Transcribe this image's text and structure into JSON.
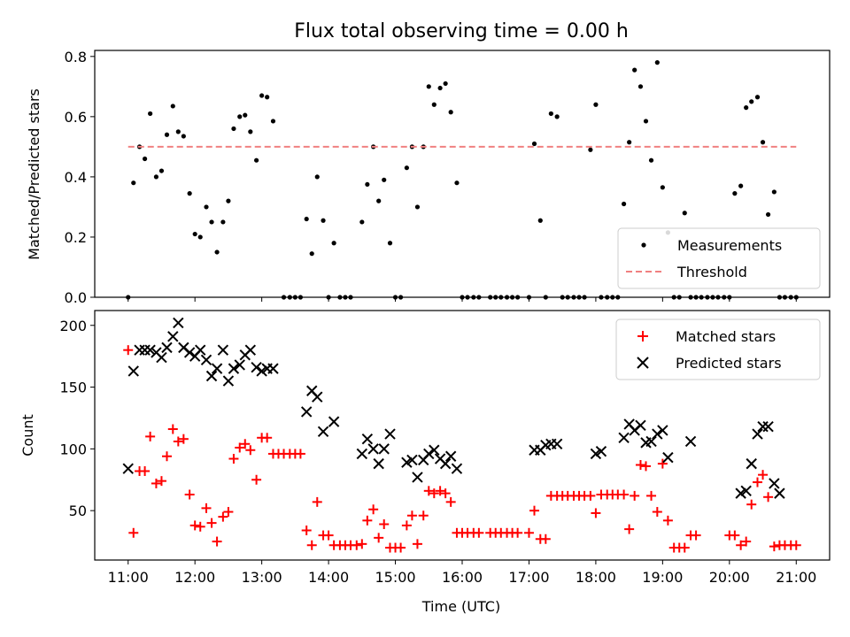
{
  "chart_data": [
    {
      "type": "scatter",
      "title": "Flux total observing time = 0.00 h",
      "ylabel": "Matched/Predicted stars",
      "xlabel": "",
      "x_unit": "hours UTC",
      "xlim": [
        10.5,
        21.5
      ],
      "ylim": [
        0,
        0.82
      ],
      "yticks": [
        "0.0",
        "0.2",
        "0.4",
        "0.6",
        "0.8"
      ],
      "legend_position": "lower-right",
      "series": [
        {
          "name": "Measurements",
          "kind": "points",
          "color": "#000000",
          "x": [
            11.0,
            11.08,
            11.17,
            11.25,
            11.33,
            11.42,
            11.5,
            11.58,
            11.67,
            11.75,
            11.83,
            11.92,
            12.0,
            12.08,
            12.17,
            12.25,
            12.33,
            12.42,
            12.5,
            12.58,
            12.67,
            12.75,
            12.83,
            12.92,
            13.0,
            13.08,
            13.17,
            13.33,
            13.42,
            13.5,
            13.58,
            13.67,
            13.75,
            13.83,
            13.92,
            14.0,
            14.08,
            14.17,
            14.25,
            14.33,
            14.5,
            14.58,
            14.67,
            14.75,
            14.83,
            14.92,
            15.0,
            15.08,
            15.17,
            15.25,
            15.33,
            15.42,
            15.5,
            15.58,
            15.67,
            15.75,
            15.83,
            15.92,
            16.0,
            16.08,
            16.17,
            16.25,
            16.42,
            16.5,
            16.58,
            16.67,
            16.75,
            16.83,
            17.0,
            17.08,
            17.17,
            17.25,
            17.33,
            17.42,
            17.5,
            17.58,
            17.67,
            17.75,
            17.83,
            17.92,
            18.0,
            18.08,
            18.17,
            18.25,
            18.33,
            18.42,
            18.5,
            18.58,
            18.67,
            18.75,
            18.83,
            18.92,
            19.0,
            19.08,
            19.17,
            19.25,
            19.33,
            19.42,
            19.5,
            19.58,
            19.67,
            19.75,
            19.83,
            19.92,
            20.0,
            20.08,
            20.17,
            20.25,
            20.33,
            20.42,
            20.5,
            20.58,
            20.67,
            20.75,
            20.83,
            20.92,
            21.0
          ],
          "y": [
            0.0,
            0.38,
            0.5,
            0.46,
            0.61,
            0.4,
            0.42,
            0.54,
            0.635,
            0.55,
            0.535,
            0.345,
            0.21,
            0.2,
            0.3,
            0.25,
            0.15,
            0.25,
            0.32,
            0.56,
            0.6,
            0.605,
            0.55,
            0.455,
            0.67,
            0.665,
            0.585,
            0.0,
            0.0,
            0.0,
            0.0,
            0.26,
            0.145,
            0.4,
            0.255,
            0.0,
            0.18,
            0.0,
            0.0,
            0.0,
            0.25,
            0.375,
            0.5,
            0.32,
            0.39,
            0.18,
            0.0,
            0.0,
            0.43,
            0.5,
            0.3,
            0.5,
            0.7,
            0.64,
            0.695,
            0.71,
            0.615,
            0.38,
            0.0,
            0.0,
            0.0,
            0.0,
            0.0,
            0.0,
            0.0,
            0.0,
            0.0,
            0.0,
            0.0,
            0.51,
            0.255,
            0.0,
            0.61,
            0.6,
            0.0,
            0.0,
            0.0,
            0.0,
            0.0,
            0.49,
            0.64,
            0.0,
            0.0,
            0.0,
            0.0,
            0.31,
            0.515,
            0.755,
            0.7,
            0.585,
            0.455,
            0.78,
            0.365,
            0.215,
            0.0,
            0.0,
            0.28,
            0.0,
            0.0,
            0.0,
            0.0,
            0.0,
            0.0,
            0.0,
            0.0,
            0.345,
            0.37,
            0.63,
            0.65,
            0.665,
            0.515,
            0.275,
            0.35,
            0.0,
            0.0,
            0.0,
            0.0
          ]
        },
        {
          "name": "Threshold",
          "kind": "dashed-line",
          "color": "#f08080",
          "x": [
            11.0,
            21.0
          ],
          "y": [
            0.5,
            0.5
          ]
        }
      ]
    },
    {
      "type": "scatter",
      "title": "",
      "ylabel": "Count",
      "xlabel": "Time (UTC)",
      "x_unit": "hours UTC",
      "xlim": [
        10.5,
        21.5
      ],
      "ylim": [
        10,
        212
      ],
      "yticks": [
        "50",
        "100",
        "150",
        "200"
      ],
      "xticks": [
        "11:00",
        "12:00",
        "13:00",
        "14:00",
        "15:00",
        "16:00",
        "17:00",
        "18:00",
        "19:00",
        "20:00",
        "21:00"
      ],
      "legend_position": "top-right",
      "series": [
        {
          "name": "Matched stars",
          "kind": "plus",
          "color": "#ff0000",
          "x": [
            11.0,
            11.08,
            11.17,
            11.25,
            11.33,
            11.42,
            11.5,
            11.58,
            11.67,
            11.75,
            11.83,
            11.92,
            12.0,
            12.08,
            12.17,
            12.25,
            12.33,
            12.42,
            12.5,
            12.58,
            12.67,
            12.75,
            12.83,
            12.92,
            13.0,
            13.08,
            13.17,
            13.25,
            13.33,
            13.42,
            13.5,
            13.58,
            13.67,
            13.75,
            13.83,
            13.92,
            14.0,
            14.08,
            14.17,
            14.25,
            14.33,
            14.42,
            14.5,
            14.58,
            14.67,
            14.75,
            14.83,
            14.92,
            15.0,
            15.08,
            15.17,
            15.25,
            15.33,
            15.42,
            15.5,
            15.58,
            15.67,
            15.75,
            15.83,
            15.92,
            16.0,
            16.08,
            16.17,
            16.25,
            16.42,
            16.5,
            16.58,
            16.67,
            16.75,
            16.83,
            17.0,
            17.08,
            17.17,
            17.25,
            17.33,
            17.42,
            17.5,
            17.58,
            17.67,
            17.75,
            17.83,
            17.92,
            18.0,
            18.08,
            18.17,
            18.25,
            18.33,
            18.42,
            18.5,
            18.58,
            18.67,
            18.75,
            18.83,
            18.92,
            19.0,
            19.08,
            19.17,
            19.25,
            19.33,
            19.42,
            19.5,
            20.0,
            20.08,
            20.17,
            20.25,
            20.33,
            20.42,
            20.5,
            20.58,
            20.67,
            20.75,
            20.83,
            20.92,
            21.0
          ],
          "y": [
            180,
            32,
            82,
            82,
            110,
            72,
            74,
            94,
            116,
            106,
            108,
            63,
            38,
            37,
            52,
            40,
            25,
            45,
            49,
            92,
            101,
            104,
            99,
            75,
            109,
            109,
            96,
            96,
            96,
            96,
            96,
            96,
            34,
            22,
            57,
            30,
            30,
            22,
            22,
            22,
            22,
            22,
            23,
            42,
            51,
            28,
            39,
            20,
            20,
            20,
            38,
            46,
            23,
            46,
            66,
            64,
            66,
            64,
            57,
            32,
            32,
            32,
            32,
            32,
            32,
            32,
            32,
            32,
            32,
            32,
            32,
            50,
            27,
            27,
            62,
            62,
            62,
            62,
            62,
            62,
            62,
            62,
            48,
            63,
            63,
            63,
            63,
            63,
            35,
            62,
            87,
            86,
            62,
            49,
            88,
            42,
            20,
            20,
            20,
            30,
            30,
            30,
            30,
            22,
            25,
            55,
            73,
            79,
            61,
            21,
            22,
            22,
            22,
            22
          ]
        },
        {
          "name": "Predicted stars",
          "kind": "cross",
          "color": "#000000",
          "x": [
            11.0,
            11.08,
            11.17,
            11.25,
            11.33,
            11.42,
            11.5,
            11.58,
            11.67,
            11.75,
            11.83,
            11.92,
            12.0,
            12.08,
            12.17,
            12.25,
            12.33,
            12.42,
            12.5,
            12.58,
            12.67,
            12.75,
            12.83,
            12.92,
            13.0,
            13.08,
            13.17,
            13.67,
            13.75,
            13.83,
            13.92,
            14.08,
            14.5,
            14.58,
            14.67,
            14.75,
            14.83,
            14.92,
            15.17,
            15.25,
            15.33,
            15.42,
            15.5,
            15.58,
            15.67,
            15.75,
            15.83,
            15.92,
            17.08,
            17.17,
            17.25,
            17.33,
            17.42,
            18.0,
            18.08,
            18.42,
            18.5,
            18.58,
            18.67,
            18.75,
            18.83,
            18.92,
            19.0,
            19.08,
            19.42,
            20.17,
            20.25,
            20.33,
            20.42,
            20.5,
            20.58,
            20.67,
            20.75
          ],
          "y": [
            84,
            163,
            180,
            180,
            180,
            178,
            174,
            182,
            191,
            202,
            182,
            178,
            175,
            180,
            172,
            159,
            165,
            180,
            155,
            165,
            168,
            176,
            180,
            166,
            163,
            165,
            165,
            130,
            147,
            142,
            114,
            122,
            96,
            108,
            100,
            88,
            100,
            112,
            89,
            91,
            77,
            91,
            96,
            99,
            92,
            88,
            94,
            84,
            99,
            99,
            103,
            104,
            104,
            96,
            98,
            109,
            120,
            115,
            119,
            105,
            106,
            112,
            115,
            93,
            106,
            64,
            66,
            88,
            112,
            118,
            118,
            72,
            64
          ]
        }
      ]
    }
  ],
  "legend": {
    "top": [
      "Measurements",
      "Threshold"
    ],
    "bottom": [
      "Matched stars",
      "Predicted stars"
    ]
  }
}
